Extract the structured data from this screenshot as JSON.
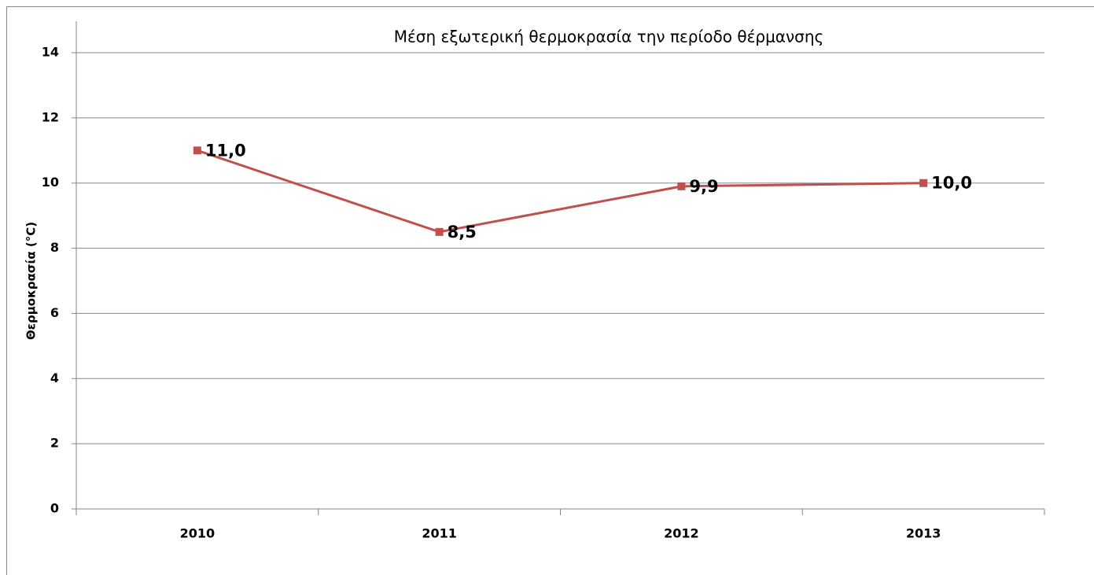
{
  "chart_data": {
    "type": "line",
    "title": "Μέση εξωτερική θερμοκρασία την περίοδο θέρμανσης",
    "y_label": "Θερμοκρασία (°C)",
    "categories": [
      "2010",
      "2011",
      "2012",
      "2013"
    ],
    "series": [
      {
        "name": "Θερμοκρασία",
        "color": "#c0504d",
        "values": [
          11.0,
          8.5,
          9.9,
          10.0
        ],
        "value_labels": [
          "11,0",
          "8,5",
          "9,9",
          "10,0"
        ]
      }
    ],
    "ylim": [
      0,
      14
    ],
    "yticks": [
      0,
      2,
      4,
      6,
      8,
      10,
      12,
      14
    ],
    "grid": true
  }
}
